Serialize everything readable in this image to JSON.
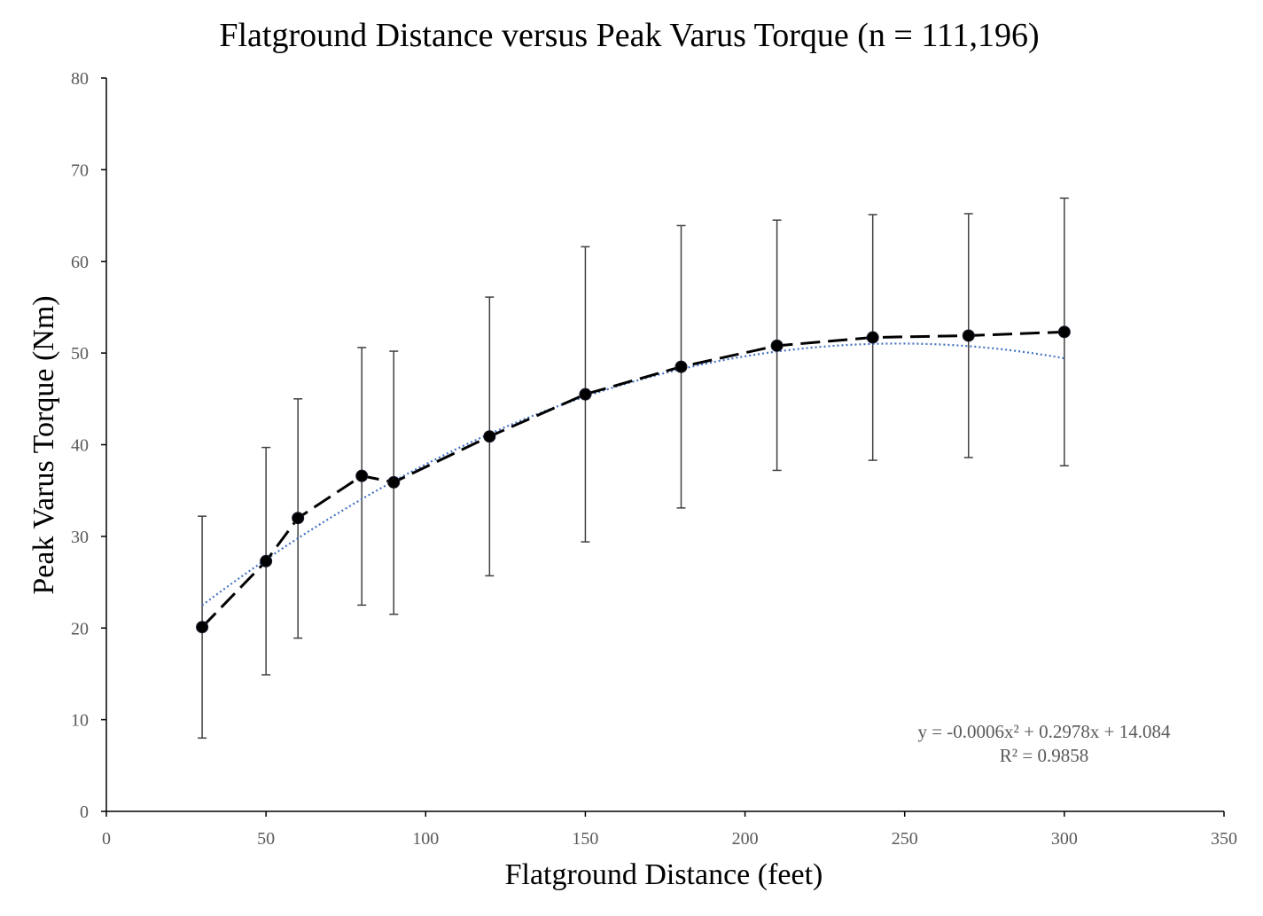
{
  "chart_data": {
    "type": "scatter",
    "title": "Flatground Distance versus Peak Varus Torque (n = 111,196)",
    "xlabel": "Flatground Distance (feet)",
    "ylabel": "Peak Varus Torque (Nm)",
    "xlim": [
      0,
      350
    ],
    "ylim": [
      0,
      80
    ],
    "x_ticks": [
      "0",
      "50",
      "100",
      "150",
      "200",
      "250",
      "300",
      "350"
    ],
    "y_ticks": [
      "0",
      "10",
      "20",
      "30",
      "40",
      "50",
      "60",
      "70",
      "80"
    ],
    "grid": false,
    "series": [
      {
        "x": [
          30,
          50,
          60,
          80,
          90,
          120,
          150,
          180,
          210,
          240,
          270,
          300
        ],
        "y": [
          20.1,
          27.3,
          32.0,
          36.6,
          35.9,
          40.9,
          45.5,
          48.5,
          50.8,
          51.7,
          51.9,
          52.3
        ],
        "err_low": [
          8.0,
          14.9,
          18.9,
          22.5,
          21.5,
          25.7,
          29.4,
          33.1,
          37.2,
          38.3,
          38.6,
          37.7
        ],
        "err_high": [
          32.2,
          39.7,
          45.0,
          50.6,
          50.2,
          56.1,
          61.6,
          63.9,
          64.5,
          65.1,
          65.2,
          66.9
        ],
        "line_style": "dashed",
        "marker": "circle",
        "color": "#000000"
      }
    ],
    "trendline": {
      "type": "polynomial",
      "coefficients": [
        -0.0006,
        0.2978,
        14.084
      ],
      "x_range": [
        30,
        300
      ],
      "color": "#4472C4",
      "style": "dotted"
    },
    "annotations": [
      "y = -0.0006x² + 0.2978x + 14.084",
      "R² = 0.9858"
    ]
  }
}
